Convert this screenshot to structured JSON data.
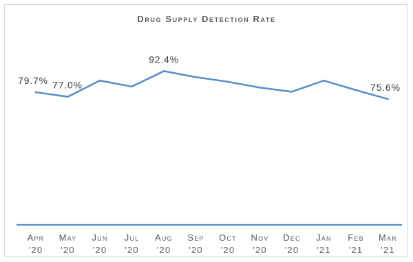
{
  "chart_data": {
    "type": "line",
    "title": "Drug Supply Detection Rate",
    "categories": [
      [
        "Apr",
        "'20"
      ],
      [
        "May",
        "'20"
      ],
      [
        "Jun",
        "'20"
      ],
      [
        "Jul",
        "'20"
      ],
      [
        "Aug",
        "'20"
      ],
      [
        "Sep",
        "'20"
      ],
      [
        "Oct",
        "'20"
      ],
      [
        "Nov",
        "'20"
      ],
      [
        "Dec",
        "'20"
      ],
      [
        "Jan",
        "'21"
      ],
      [
        "Feb",
        "'21"
      ],
      [
        "Mar",
        "'21"
      ]
    ],
    "series": [
      {
        "values": [
          79.7,
          77.0,
          86.7,
          83.1,
          92.4,
          88.8,
          86.0,
          82.5,
          80.0,
          86.7,
          81.0,
          75.6
        ]
      }
    ],
    "data_labels": [
      {
        "index": 0,
        "text": "79.7%"
      },
      {
        "index": 1,
        "text": "77.0%"
      },
      {
        "index": 4,
        "text": "92.4%"
      },
      {
        "index": 11,
        "text": "75.6%"
      }
    ],
    "xlabel": "",
    "ylabel": "",
    "ylim": [
      0,
      100
    ],
    "grid": false,
    "legend": "none",
    "colors": {
      "line": "#5b8fc9",
      "axis": "#5b8fc9",
      "text": "#595959"
    }
  }
}
